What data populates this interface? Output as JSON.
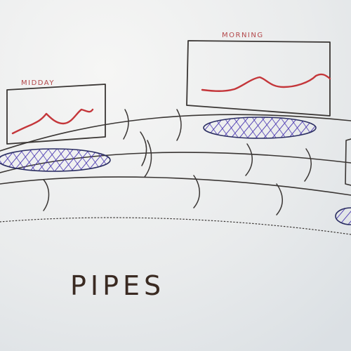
{
  "labels": {
    "midday": "MIDDAY",
    "morning": "MORNING",
    "pipes": "PIPES"
  },
  "colors": {
    "ink": "#3a3634",
    "marker_red": "#c4363a",
    "marker_blue": "#4633b0",
    "paper": "#eceef0"
  }
}
